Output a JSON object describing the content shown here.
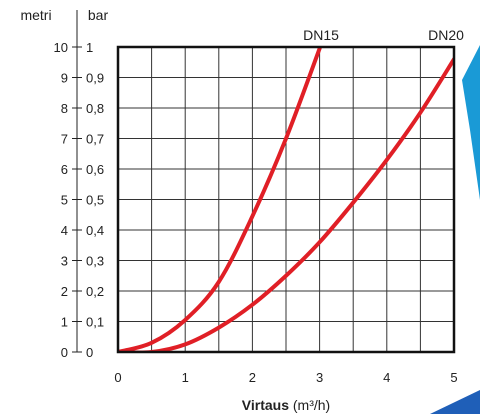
{
  "chart_data": {
    "type": "line",
    "x_label": "Virtaus",
    "x_unit": "(m³/h)",
    "x_ticks": [
      "0",
      "1",
      "2",
      "3",
      "4",
      "5"
    ],
    "xlim": [
      0,
      5
    ],
    "left_axis": {
      "label": "metri",
      "ticks": [
        "0",
        "1",
        "2",
        "3",
        "4",
        "5",
        "6",
        "7",
        "8",
        "9",
        "10"
      ],
      "range": [
        0,
        10
      ]
    },
    "right_axis": {
      "label": "bar",
      "ticks": [
        "0",
        "0,1",
        "0,2",
        "0,3",
        "0,4",
        "0,5",
        "0,6",
        "0,7",
        "0,8",
        "0,9",
        "1"
      ],
      "range": [
        0,
        1
      ]
    },
    "grid": true,
    "line_color": "#e01f26",
    "series": [
      {
        "name": "DN15",
        "x": [
          0,
          0.5,
          1.0,
          1.5,
          2.0,
          2.5,
          3.0
        ],
        "y": [
          0.0,
          0.3,
          1.05,
          2.3,
          4.45,
          7.0,
          9.95
        ]
      },
      {
        "name": "DN20",
        "x": [
          0,
          0.5,
          1.0,
          1.5,
          2.0,
          2.5,
          3.0,
          3.5,
          4.0,
          4.5,
          5.0
        ],
        "y": [
          0.0,
          0.0,
          0.25,
          0.8,
          1.55,
          2.5,
          3.6,
          4.9,
          6.3,
          7.85,
          9.6
        ]
      }
    ]
  }
}
